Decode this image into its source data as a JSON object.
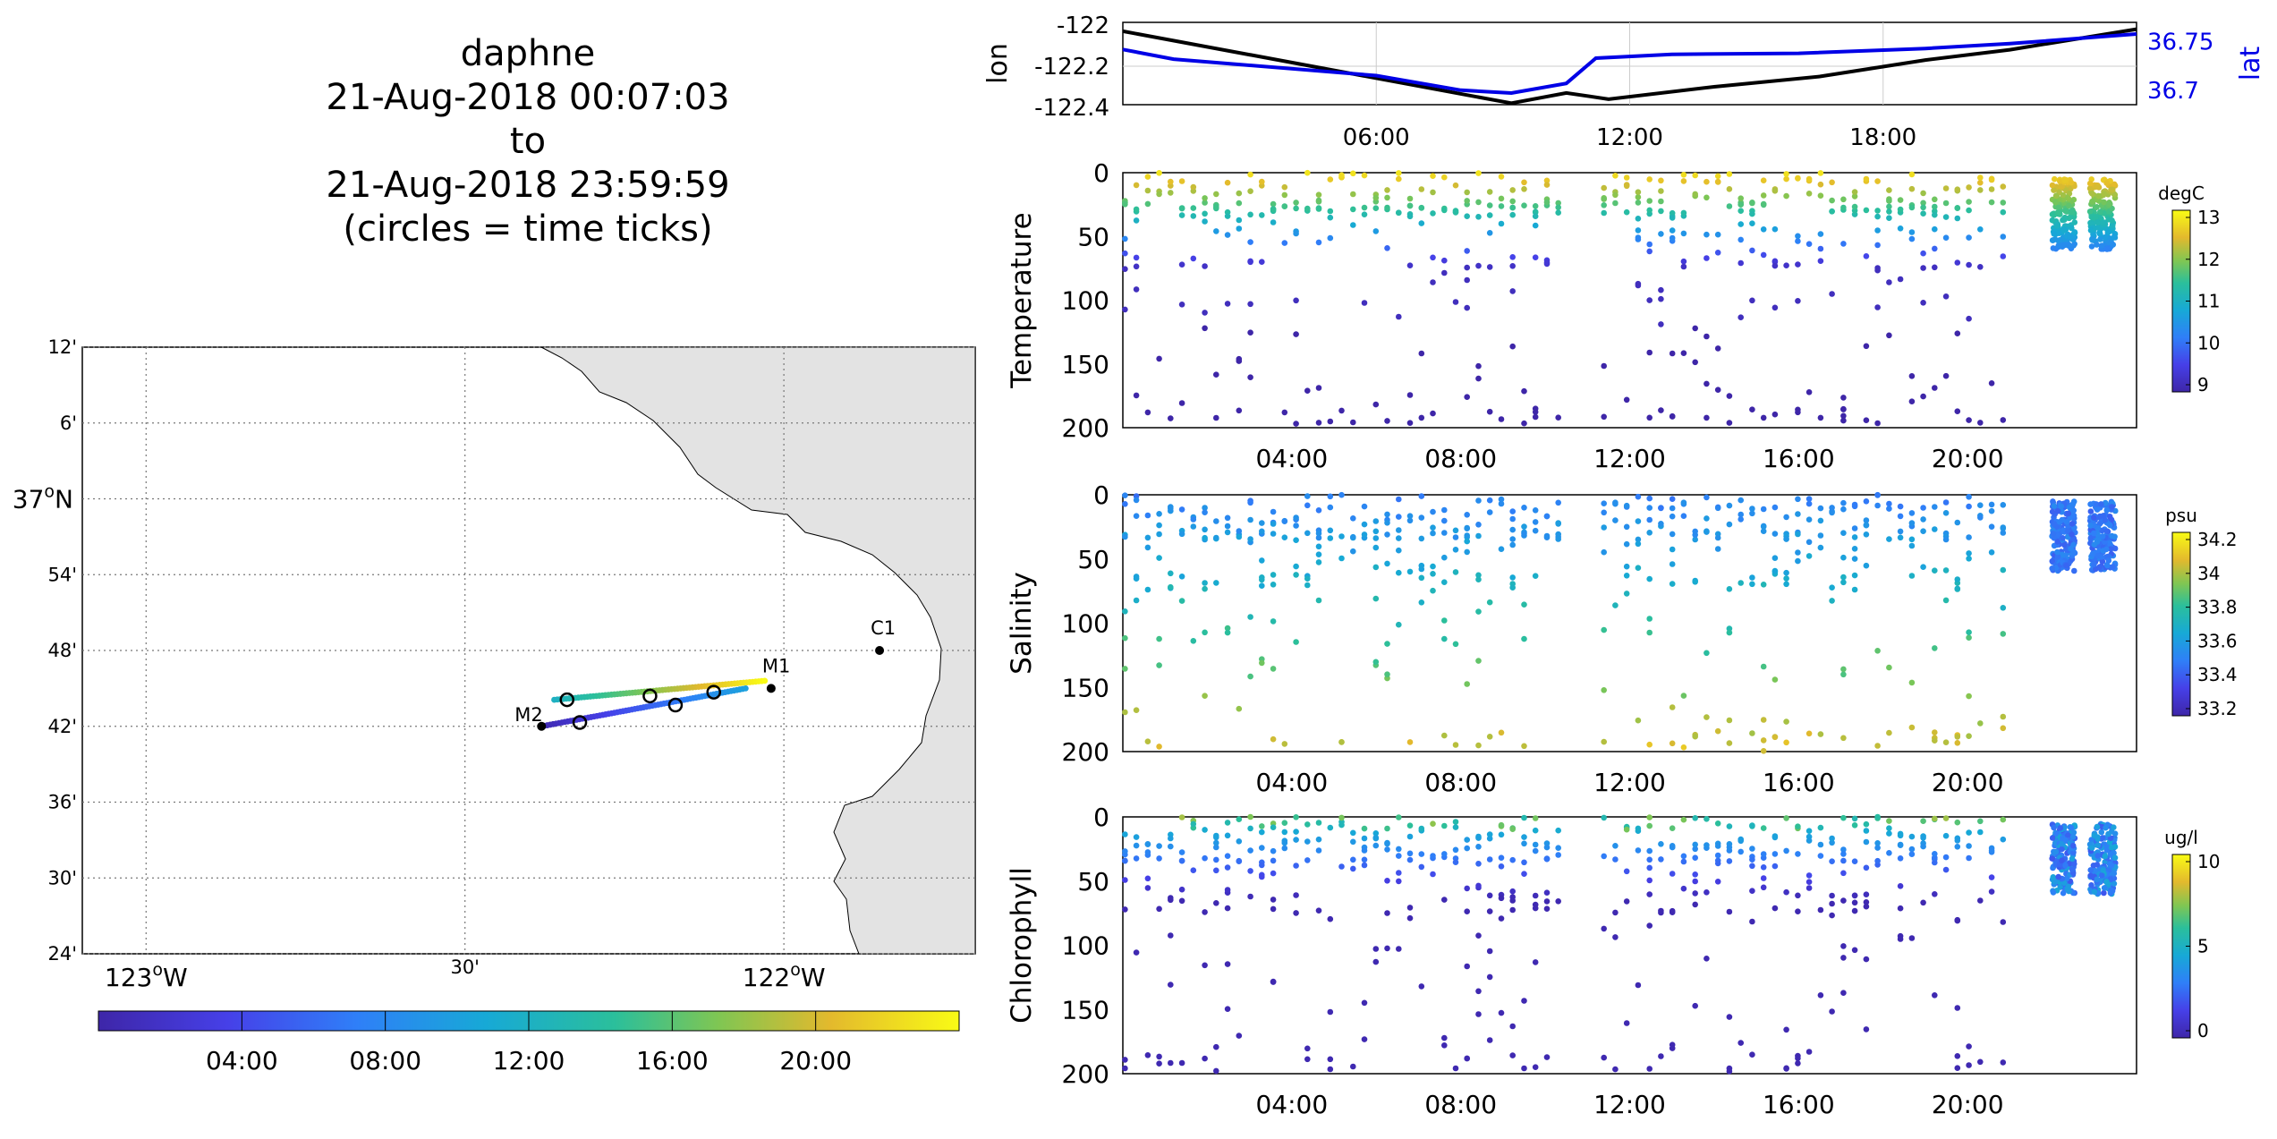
{
  "title_lines": [
    "daphne",
    "21-Aug-2018 00:07:03",
    "to",
    "21-Aug-2018 23:59:59",
    "(circles = time ticks)"
  ],
  "chart_data": [
    {
      "type": "map",
      "lat_ticks": [
        "12'",
        "6'",
        "37°N",
        "54'",
        "48'",
        "42'",
        "36'",
        "30'",
        "24'"
      ],
      "lon_ticks": [
        "123°W",
        "30'",
        "122°W"
      ],
      "lon_range": [
        -123.1,
        -121.7
      ],
      "lat_range": [
        36.4,
        37.2
      ],
      "stations": [
        {
          "name": "C1",
          "lon": -121.85,
          "lat": 36.8
        },
        {
          "name": "M1",
          "lon": -122.02,
          "lat": 36.75
        },
        {
          "name": "M2",
          "lon": -122.38,
          "lat": 36.7
        }
      ],
      "track_start": {
        "lon": -122.38,
        "lat": 36.7
      },
      "track_end": {
        "lon": -122.03,
        "lat": 36.76
      },
      "time_tick_circles": [
        {
          "lon": -122.34,
          "lat": 36.735
        },
        {
          "lon": -122.32,
          "lat": 36.705
        },
        {
          "lon": -122.21,
          "lat": 36.74
        },
        {
          "lon": -122.17,
          "lat": 36.728
        },
        {
          "lon": -122.11,
          "lat": 36.745
        }
      ],
      "colorbar_ticks": [
        "04:00",
        "08:00",
        "12:00",
        "16:00",
        "20:00"
      ]
    },
    {
      "type": "line",
      "ylabel": "lon",
      "ylabel_right": "lat",
      "y_ticks": [
        "-122",
        "-122.2",
        "-122.4"
      ],
      "y_right_ticks": [
        "36.75",
        "36.7"
      ],
      "x_ticks": [
        "06:00",
        "12:00",
        "18:00"
      ],
      "x_range_hours": [
        0,
        24
      ],
      "series": [
        {
          "color": "#000000",
          "axis": "lon",
          "points": [
            [
              0,
              -122.03
            ],
            [
              9.2,
              -122.38
            ],
            [
              10.5,
              -122.33
            ],
            [
              11.5,
              -122.36
            ],
            [
              14,
              -122.3
            ],
            [
              16.5,
              -122.25
            ],
            [
              19,
              -122.17
            ],
            [
              21,
              -122.12
            ],
            [
              24,
              -122.02
            ]
          ]
        },
        {
          "color": "#0000e6",
          "axis": "lat",
          "points": [
            [
              0,
              36.742
            ],
            [
              1.2,
              36.732
            ],
            [
              6,
              36.715
            ],
            [
              8,
              36.7
            ],
            [
              9.2,
              36.697
            ],
            [
              10.5,
              36.707
            ],
            [
              11.2,
              36.733
            ],
            [
              13,
              36.737
            ],
            [
              16,
              36.738
            ],
            [
              19,
              36.743
            ],
            [
              21,
              36.748
            ],
            [
              24,
              36.758
            ]
          ]
        }
      ]
    },
    {
      "type": "scatter",
      "ylabel": "Temperature",
      "y_ticks": [
        "0",
        "50",
        "100",
        "150",
        "200"
      ],
      "ylim": [
        200,
        0
      ],
      "x_ticks": [
        "04:00",
        "08:00",
        "12:00",
        "16:00",
        "20:00"
      ],
      "colorbar_label": "degC",
      "colorbar_ticks": [
        "13",
        "12",
        "11",
        "10",
        "9"
      ]
    },
    {
      "type": "scatter",
      "ylabel": "Salinity",
      "y_ticks": [
        "0",
        "50",
        "100",
        "150",
        "200"
      ],
      "ylim": [
        200,
        0
      ],
      "x_ticks": [
        "04:00",
        "08:00",
        "12:00",
        "16:00",
        "20:00"
      ],
      "colorbar_label": "psu",
      "colorbar_ticks": [
        "34.2",
        "34",
        "33.8",
        "33.6",
        "33.4",
        "33.2"
      ]
    },
    {
      "type": "scatter",
      "ylabel": "Chlorophyll",
      "y_ticks": [
        "0",
        "50",
        "100",
        "150",
        "200"
      ],
      "ylim": [
        200,
        0
      ],
      "x_ticks": [
        "04:00",
        "08:00",
        "12:00",
        "16:00",
        "20:00"
      ],
      "colorbar_label": "ug/l",
      "colorbar_ticks": [
        "10",
        "5",
        "0"
      ]
    }
  ]
}
